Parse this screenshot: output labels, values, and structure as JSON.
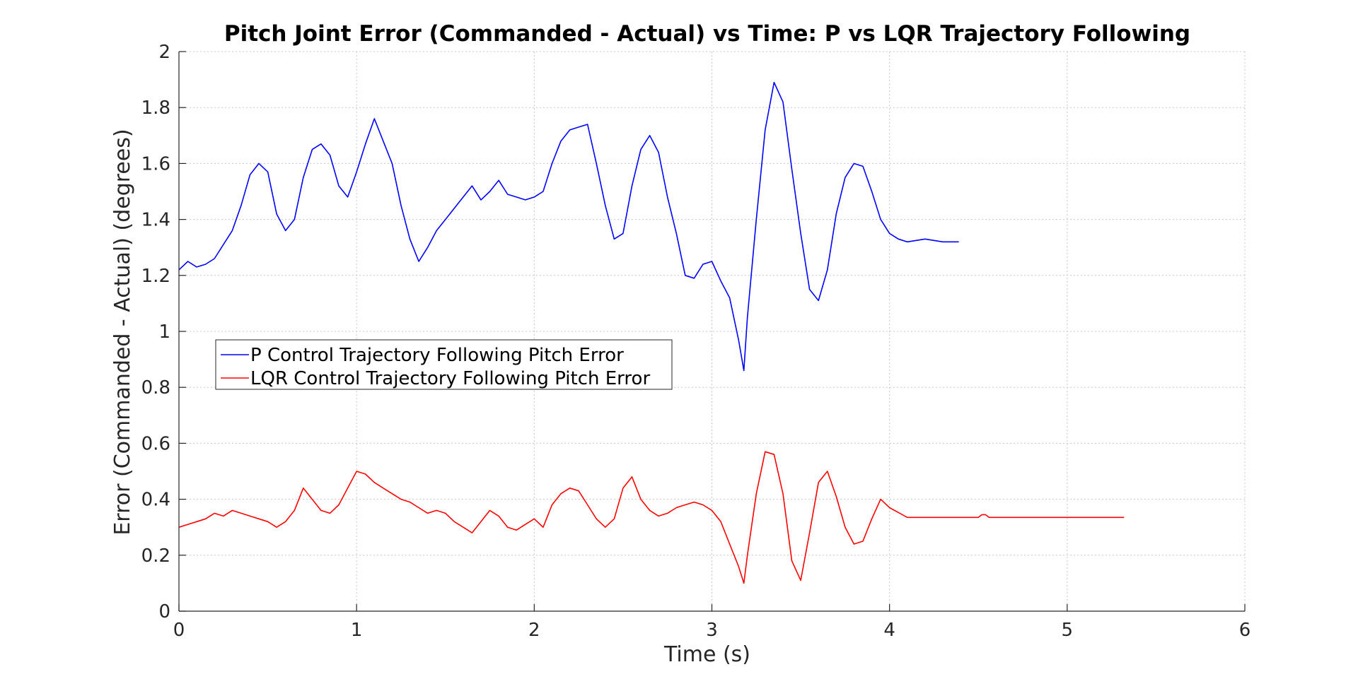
{
  "chart_data": {
    "type": "line",
    "title": "Pitch Joint Error (Commanded - Actual) vs Time: P vs LQR Trajectory Following",
    "xlabel": "Time (s)",
    "ylabel": "Error (Commanded - Actual) (degrees)",
    "xlim": [
      0,
      6
    ],
    "ylim": [
      0,
      2
    ],
    "xticks": [
      0,
      1,
      2,
      3,
      4,
      5,
      6
    ],
    "yticks": [
      0,
      0.2,
      0.4,
      0.6,
      0.8,
      1,
      1.2,
      1.4,
      1.6,
      1.8,
      2
    ],
    "grid": true,
    "legend_position": "middle-left",
    "series": [
      {
        "name": "P Control Trajectory Following Pitch Error",
        "color": "#0000ff",
        "x": [
          0,
          0.05,
          0.1,
          0.15,
          0.2,
          0.25,
          0.3,
          0.35,
          0.4,
          0.45,
          0.5,
          0.55,
          0.6,
          0.65,
          0.7,
          0.75,
          0.8,
          0.85,
          0.9,
          0.95,
          1.0,
          1.05,
          1.1,
          1.15,
          1.2,
          1.25,
          1.3,
          1.35,
          1.4,
          1.45,
          1.5,
          1.55,
          1.6,
          1.65,
          1.7,
          1.75,
          1.8,
          1.85,
          1.9,
          1.95,
          2.0,
          2.05,
          2.1,
          2.15,
          2.2,
          2.25,
          2.3,
          2.35,
          2.4,
          2.45,
          2.5,
          2.55,
          2.6,
          2.65,
          2.7,
          2.75,
          2.8,
          2.85,
          2.9,
          2.95,
          3.0,
          3.05,
          3.1,
          3.15,
          3.18,
          3.2,
          3.25,
          3.3,
          3.35,
          3.4,
          3.45,
          3.5,
          3.55,
          3.6,
          3.65,
          3.7,
          3.75,
          3.8,
          3.85,
          3.9,
          3.95,
          4.0,
          4.05,
          4.1,
          4.2,
          4.3,
          4.39
        ],
        "y": [
          1.22,
          1.25,
          1.23,
          1.24,
          1.26,
          1.31,
          1.36,
          1.45,
          1.56,
          1.6,
          1.57,
          1.42,
          1.36,
          1.4,
          1.55,
          1.65,
          1.67,
          1.63,
          1.52,
          1.48,
          1.57,
          1.67,
          1.76,
          1.68,
          1.6,
          1.45,
          1.33,
          1.25,
          1.3,
          1.36,
          1.4,
          1.44,
          1.48,
          1.52,
          1.47,
          1.5,
          1.54,
          1.49,
          1.48,
          1.47,
          1.48,
          1.5,
          1.6,
          1.68,
          1.72,
          1.73,
          1.74,
          1.6,
          1.45,
          1.33,
          1.35,
          1.52,
          1.65,
          1.7,
          1.64,
          1.48,
          1.35,
          1.2,
          1.19,
          1.24,
          1.25,
          1.18,
          1.12,
          0.97,
          0.86,
          1.05,
          1.4,
          1.72,
          1.89,
          1.82,
          1.58,
          1.35,
          1.15,
          1.11,
          1.22,
          1.42,
          1.55,
          1.6,
          1.59,
          1.5,
          1.4,
          1.35,
          1.33,
          1.32,
          1.33,
          1.32,
          1.32
        ]
      },
      {
        "name": "LQR Control Trajectory Following Pitch Error",
        "color": "#ff0000",
        "x": [
          0,
          0.05,
          0.1,
          0.15,
          0.2,
          0.25,
          0.3,
          0.35,
          0.4,
          0.45,
          0.5,
          0.55,
          0.6,
          0.65,
          0.7,
          0.75,
          0.8,
          0.85,
          0.9,
          0.95,
          1.0,
          1.05,
          1.1,
          1.15,
          1.2,
          1.25,
          1.3,
          1.35,
          1.4,
          1.45,
          1.5,
          1.55,
          1.6,
          1.65,
          1.7,
          1.75,
          1.8,
          1.85,
          1.9,
          1.95,
          2.0,
          2.05,
          2.1,
          2.15,
          2.2,
          2.25,
          2.3,
          2.35,
          2.4,
          2.45,
          2.5,
          2.55,
          2.6,
          2.65,
          2.7,
          2.75,
          2.8,
          2.85,
          2.9,
          2.95,
          3.0,
          3.05,
          3.1,
          3.15,
          3.18,
          3.2,
          3.25,
          3.3,
          3.35,
          3.4,
          3.45,
          3.5,
          3.55,
          3.6,
          3.65,
          3.7,
          3.75,
          3.8,
          3.85,
          3.9,
          3.95,
          4.0,
          4.1,
          4.5,
          4.52,
          4.54,
          4.56,
          5.0,
          5.32
        ],
        "y": [
          0.3,
          0.31,
          0.32,
          0.33,
          0.35,
          0.34,
          0.36,
          0.35,
          0.34,
          0.33,
          0.32,
          0.3,
          0.32,
          0.36,
          0.44,
          0.4,
          0.36,
          0.35,
          0.38,
          0.44,
          0.5,
          0.49,
          0.46,
          0.44,
          0.42,
          0.4,
          0.39,
          0.37,
          0.35,
          0.36,
          0.35,
          0.32,
          0.3,
          0.28,
          0.32,
          0.36,
          0.34,
          0.3,
          0.29,
          0.31,
          0.33,
          0.3,
          0.38,
          0.42,
          0.44,
          0.43,
          0.38,
          0.33,
          0.3,
          0.33,
          0.44,
          0.48,
          0.4,
          0.36,
          0.34,
          0.35,
          0.37,
          0.38,
          0.39,
          0.38,
          0.36,
          0.32,
          0.24,
          0.16,
          0.1,
          0.2,
          0.42,
          0.57,
          0.56,
          0.42,
          0.18,
          0.11,
          0.28,
          0.46,
          0.5,
          0.41,
          0.3,
          0.24,
          0.25,
          0.33,
          0.4,
          0.37,
          0.335,
          0.335,
          0.345,
          0.345,
          0.335,
          0.335,
          0.335
        ]
      }
    ]
  }
}
